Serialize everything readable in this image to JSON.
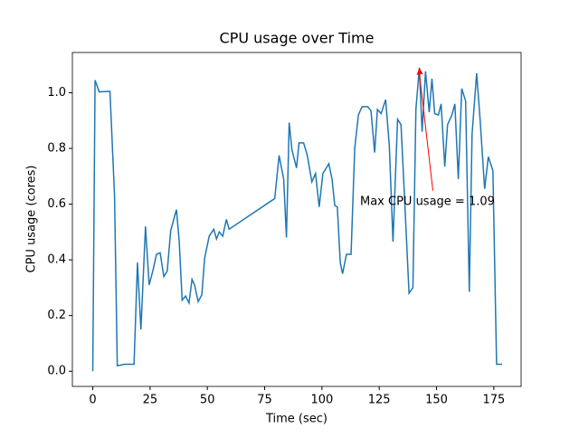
{
  "chart_data": {
    "type": "line",
    "title": "CPU usage over Time",
    "x_label": "Time (sec)",
    "y_label": "CPU usage (cores)",
    "x": [
      0,
      1,
      2.8,
      7.5,
      9.5,
      10.7,
      14,
      18,
      19.5,
      21,
      23,
      24.6,
      26.2,
      27.8,
      29.4,
      31,
      32.5,
      34,
      36.5,
      37.7,
      39,
      40.5,
      42,
      43.3,
      44.4,
      46,
      47.6,
      48.8,
      50.8,
      52.8,
      54,
      55.2,
      56.7,
      58.3,
      59.5,
      79.4,
      81.3,
      83.3,
      84.5,
      85.7,
      86.9,
      88.9,
      90,
      92,
      93.6,
      95.6,
      97.2,
      98.8,
      100.4,
      103,
      104.4,
      105.6,
      106.7,
      108,
      109,
      110.7,
      112.7,
      114.3,
      115.9,
      117.5,
      120,
      121.4,
      123,
      124.2,
      125.8,
      127.8,
      129.4,
      131,
      133,
      134.5,
      136,
      138,
      139.7,
      141,
      142.5,
      143.7,
      145.2,
      146.8,
      148,
      149.2,
      150.8,
      152,
      153.6,
      154.8,
      156.7,
      158,
      159.5,
      161,
      162.7,
      164.3,
      165.5,
      167.5,
      169,
      171,
      172.6,
      174.6,
      176.2,
      178.6
    ],
    "values": [
      0,
      1.045,
      1.003,
      1.005,
      0.63,
      0.02,
      0.025,
      0.025,
      0.39,
      0.15,
      0.52,
      0.31,
      0.36,
      0.42,
      0.425,
      0.34,
      0.36,
      0.505,
      0.58,
      0.47,
      0.255,
      0.27,
      0.245,
      0.33,
      0.31,
      0.25,
      0.275,
      0.405,
      0.485,
      0.51,
      0.475,
      0.5,
      0.485,
      0.545,
      0.51,
      0.62,
      0.775,
      0.69,
      0.48,
      0.893,
      0.795,
      0.73,
      0.82,
      0.82,
      0.775,
      0.68,
      0.71,
      0.59,
      0.71,
      0.745,
      0.69,
      0.595,
      0.59,
      0.39,
      0.35,
      0.42,
      0.42,
      0.8,
      0.92,
      0.95,
      0.95,
      0.935,
      0.785,
      0.94,
      0.925,
      0.975,
      0.81,
      0.465,
      0.905,
      0.885,
      0.63,
      0.28,
      0.3,
      0.94,
      1.09,
      0.86,
      1.077,
      0.93,
      1.05,
      0.925,
      0.92,
      0.96,
      0.735,
      0.885,
      0.92,
      0.96,
      0.69,
      1.015,
      0.97,
      0.285,
      0.85,
      1.07,
      0.905,
      0.655,
      0.77,
      0.72,
      0.025,
      0.025
    ],
    "color": "#1f77b4",
    "annotation": "Max CPU usage = 1.09",
    "annotation_color": "#ff0000",
    "xlim": [
      -8.9,
      186.9
    ],
    "xticks": [
      0,
      25,
      50,
      75,
      100,
      125,
      150,
      175
    ],
    "ylim": [
      -0.0545,
      1.1445
    ],
    "yticks": [
      {
        "value": 0,
        "label": "0.0"
      },
      0.2,
      0.4,
      0.6,
      0.8,
      {
        "value": 1,
        "label": "1.0"
      }
    ]
  }
}
